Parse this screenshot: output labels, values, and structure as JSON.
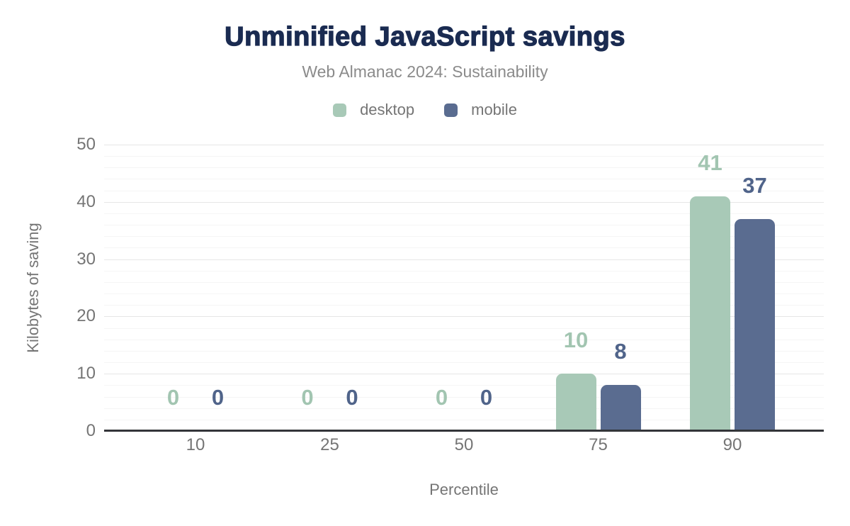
{
  "chart_data": {
    "type": "bar",
    "title": "Unminified JavaScript savings",
    "subtitle": "Web Almanac 2024: Sustainability",
    "xlabel": "Percentile",
    "ylabel": "Kilobytes of saving",
    "categories": [
      "10",
      "25",
      "50",
      "75",
      "90"
    ],
    "series": [
      {
        "name": "desktop",
        "color": "#a8c9b7",
        "label_color": "#a2c5b1",
        "values": [
          0,
          0,
          0,
          10,
          41
        ]
      },
      {
        "name": "mobile",
        "color": "#5a6c90",
        "label_color": "#50648a",
        "values": [
          0,
          0,
          0,
          8,
          37
        ]
      }
    ],
    "ylim": [
      0,
      50
    ],
    "yticks": [
      0,
      10,
      20,
      30,
      40,
      50
    ],
    "grid": {
      "major_step": 10,
      "minor_step": 2,
      "visible": true
    },
    "legend_position": "top",
    "bar_labels_visible": true
  },
  "colors": {
    "title": "#1a2b51",
    "subtitle": "#8b8b8b",
    "axis_text": "#757575",
    "axis_line": "#333539",
    "grid_major": "#e6e6e6",
    "grid_minor": "#f5f5f5",
    "background": "#ffffff"
  }
}
